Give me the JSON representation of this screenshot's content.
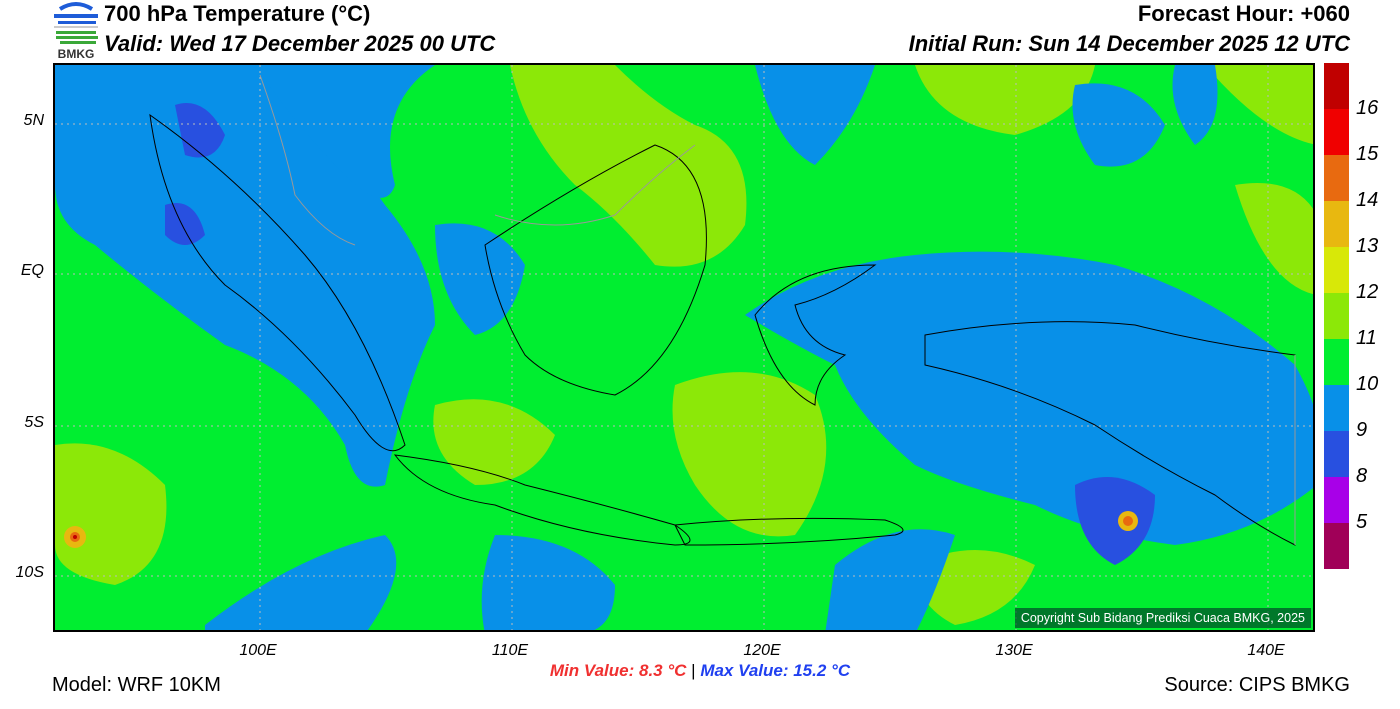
{
  "header": {
    "title": "700 hPa Temperature (°C)",
    "valid": "Valid: Wed 17 December 2025 00 UTC",
    "forecast_hour": "Forecast Hour: +060",
    "initial_run": "Initial Run: Sun 14 December 2025 12 UTC",
    "logo_text": "BMKG"
  },
  "map": {
    "lat_labels": [
      "5N",
      "EQ",
      "5S",
      "10S"
    ],
    "lon_labels": [
      "100E",
      "110E",
      "120E",
      "130E",
      "140E"
    ],
    "copyright": "Copyright Sub Bidang Prediksi Cuaca BMKG, 2025"
  },
  "colorbar": {
    "labels": [
      "16",
      "15",
      "14",
      "13",
      "12",
      "11",
      "10",
      "9",
      "8",
      "5"
    ],
    "colors": [
      "#c00000",
      "#f00000",
      "#e86a10",
      "#e8b810",
      "#d8e808",
      "#8ce808",
      "#00ee30",
      "#0890e8",
      "#2850e0",
      "#a800e8",
      "#a00058"
    ]
  },
  "footer": {
    "min_value": "Min Value: 8.3 °C",
    "separator": "|",
    "max_value": "Max Value: 15.2 °C",
    "model": "Model: WRF 10KM",
    "source": "Source: CIPS BMKG"
  }
}
